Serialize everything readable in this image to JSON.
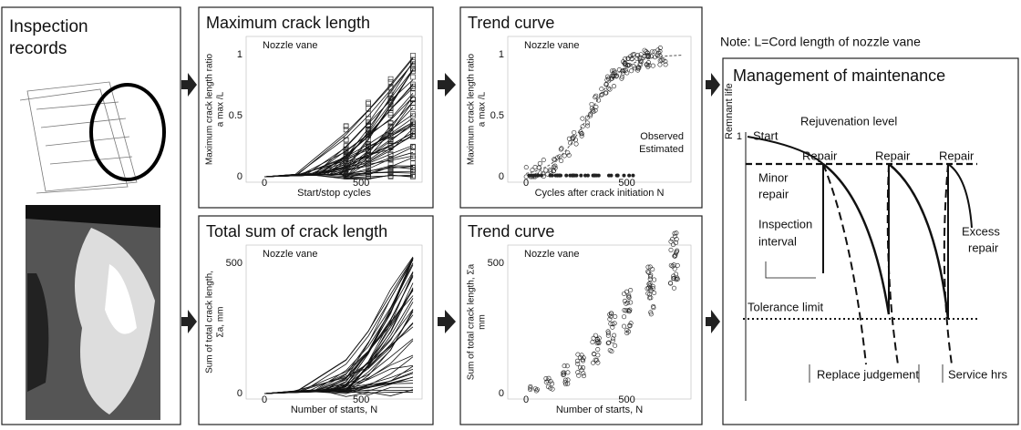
{
  "inspection": {
    "title": [
      "Inspection",
      "records"
    ]
  },
  "panels": [
    {
      "title": "Maximum crack length",
      "annotation": "Nozzle vane",
      "ylabel": [
        "Maximum crack length ratio",
        "a max /L"
      ],
      "xlabel": "Start/stop cycles",
      "xticks": [
        "0",
        "500"
      ],
      "yticks": [
        "0",
        "0.5",
        "1"
      ]
    },
    {
      "title": "Trend curve",
      "annotation": "Nozzle vane",
      "ylabel": [
        "Maximum crack length ratio",
        "a max /L"
      ],
      "xlabel": "Cycles after crack initiation N",
      "xticks": [
        "0",
        "500"
      ],
      "yticks": [
        "0",
        "0.5",
        "1"
      ],
      "legend": [
        "Observed",
        "Estimated"
      ]
    },
    {
      "title": "Total sum of crack length",
      "annotation": "Nozzle vane",
      "ylabel": [
        "Sum of total crack length,",
        "Σa, mm"
      ],
      "xlabel": "Number of starts, N",
      "xticks": [
        "0",
        "500"
      ],
      "yticks": [
        "0",
        "500"
      ]
    },
    {
      "title": "Trend curve",
      "annotation": "Nozzle vane",
      "ylabel": [
        "Sum of total crack length, Σa",
        "mm"
      ],
      "xlabel": "Number of starts, N",
      "xticks": [
        "0",
        "500"
      ],
      "yticks": [
        "0",
        "500"
      ]
    }
  ],
  "note": "Note: L=Cord length of nozzle vane",
  "management": {
    "title": "Management of maintenance",
    "ylabel": "Remnant life",
    "ytick": "1",
    "start": "Start",
    "rejuvenation": "Rejuvenation level",
    "repair": [
      "Repair",
      "Repair",
      "Repair"
    ],
    "minor_repair": [
      "Minor",
      "repair"
    ],
    "inspection_interval": [
      "Inspection",
      "interval"
    ],
    "excess_repair": [
      "Excess",
      "repair"
    ],
    "tolerance": "Tolerance limit",
    "replace": "Replace judgement",
    "service": "Service hrs"
  }
}
